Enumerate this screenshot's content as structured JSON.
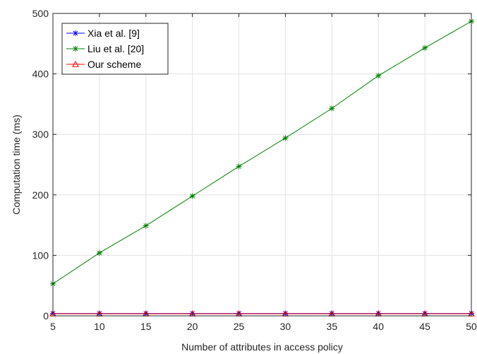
{
  "chart_data": {
    "type": "line",
    "xlabel": "Number of attributes in access policy",
    "ylabel": "Computation time (ms)",
    "xlim": [
      5,
      50
    ],
    "ylim": [
      0,
      500
    ],
    "xticks": [
      5,
      10,
      15,
      20,
      25,
      30,
      35,
      40,
      45,
      50
    ],
    "yticks": [
      0,
      100,
      200,
      300,
      400,
      500
    ],
    "grid": true,
    "legend_position": "top-left",
    "x": [
      5,
      10,
      15,
      20,
      25,
      30,
      35,
      40,
      45,
      50
    ],
    "series": [
      {
        "name": "Xia et al. [9]",
        "color": "#0000ff",
        "marker": "asterisk",
        "values": [
          4,
          4,
          4,
          4,
          4,
          4,
          4,
          4,
          4,
          4
        ]
      },
      {
        "name": "Liu et al. [20]",
        "color": "#008000",
        "marker": "asterisk",
        "values": [
          53,
          104,
          149,
          198,
          247,
          294,
          343,
          397,
          443,
          487
        ]
      },
      {
        "name": "Our scheme",
        "color": "#ff0000",
        "marker": "triangle",
        "values": [
          3.5,
          3.5,
          3.5,
          3.5,
          3.5,
          3.5,
          3.5,
          3.5,
          3.5,
          3.5
        ]
      }
    ]
  }
}
